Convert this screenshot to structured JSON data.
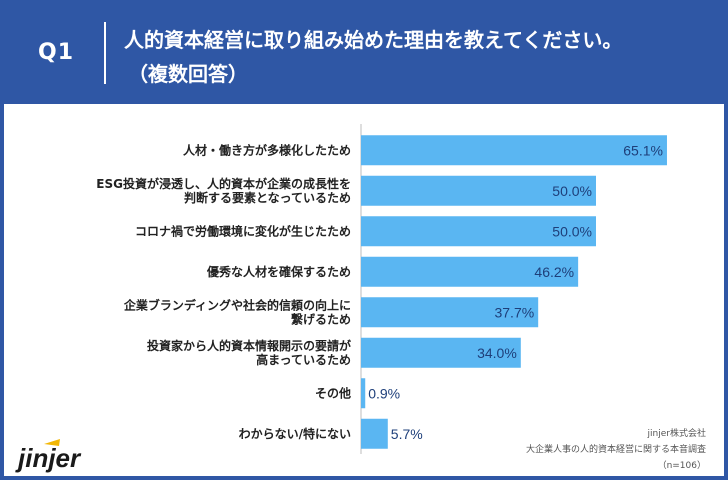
{
  "header": {
    "q_label": "Q1",
    "title_line1": "人的資本経営に取り組み始めた理由を教えてください。",
    "title_line2": "（複数回答）"
  },
  "source": {
    "line1": "jinjer株式会社",
    "line2": "大企業人事の人的資本経営に関する本音調査",
    "line3": "（n=106）"
  },
  "logo": {
    "text": "jinjer"
  },
  "colors": {
    "bar": "#5ab6f2",
    "header": "#2f57a5",
    "axis": "#bdbdbd",
    "label_text": "#222222",
    "value_text": "#1e3f7a"
  },
  "chart_data": {
    "type": "bar",
    "orientation": "horizontal",
    "title": "人的資本経営に取り組み始めた理由を教えてください。（複数回答）",
    "categories": [
      [
        "人材・働き方が多様化したため"
      ],
      [
        "ESG投資が浸透し、人的資本が企業の成長性を",
        "判断する要素となっているため"
      ],
      [
        "コロナ禍で労働環境に変化が生じたため"
      ],
      [
        "優秀な人材を確保するため"
      ],
      [
        "企業ブランディングや社会的信頼の向上に",
        "繋げるため"
      ],
      [
        "投資家から人的資本情報開示の要請が",
        "高まっているため"
      ],
      [
        "その他"
      ],
      [
        "わからない/特にない"
      ]
    ],
    "values": [
      65.1,
      50.0,
      50.0,
      46.2,
      37.7,
      34.0,
      0.9,
      5.7
    ],
    "value_labels": [
      "65.1%",
      "50.0%",
      "50.0%",
      "46.2%",
      "37.7%",
      "34.0%",
      "0.9%",
      "5.7%"
    ],
    "unit": "%",
    "xlim": [
      0,
      70
    ],
    "xlabel": "",
    "ylabel": "",
    "grid": false,
    "legend": "none"
  }
}
